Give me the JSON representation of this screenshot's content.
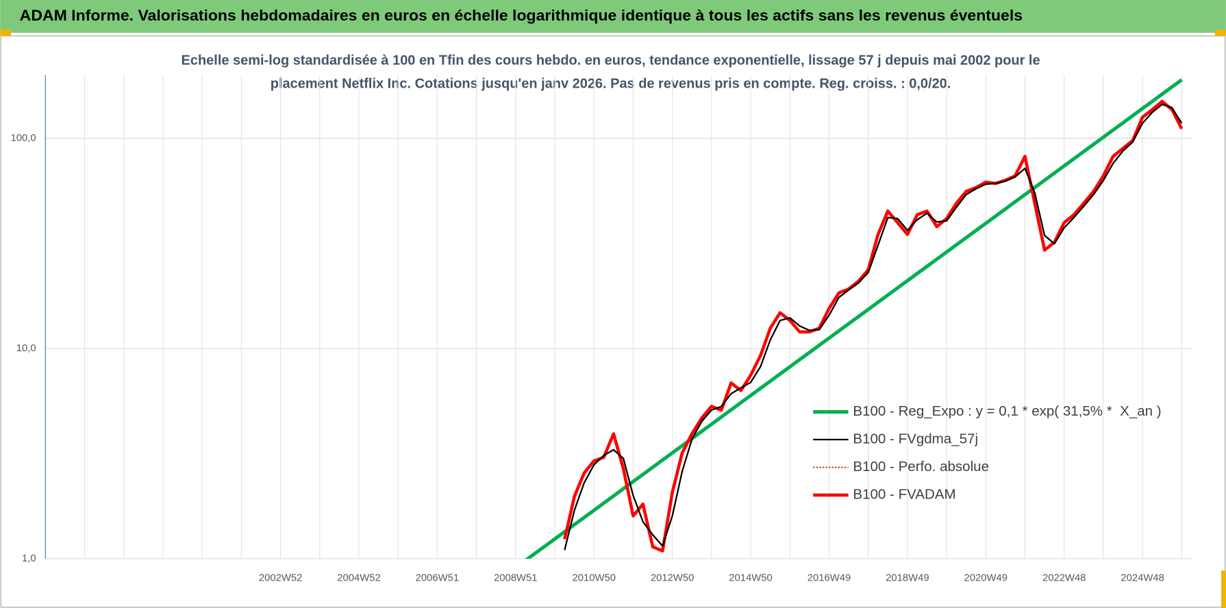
{
  "header": {
    "title": "ADAM Informe. Valorisations hebdomadaires en euros en échelle logarithmique identique à tous les actifs sans les revenus éventuels"
  },
  "chart_data": {
    "type": "line",
    "subtitle": [
      "Echelle semi-log standardisée à 100 en Tfin des cours hebdo. en euros, tendance exponentielle, lissage 57 j depuis mai 2002 pour le",
      "placement Netflix Inc. Cotations jusqu'en janv 2026. Pas de revenus pris en compte. Reg. croiss. : 0,0/20."
    ],
    "log_scale": true,
    "grid": true,
    "legend": "lower right",
    "ylim": [
      1,
      200
    ],
    "yticks": [
      {
        "value": 1,
        "label": "1,0"
      },
      {
        "value": 10,
        "label": "10,0"
      },
      {
        "value": 100,
        "label": "100,0"
      }
    ],
    "categories": [
      null,
      null,
      null,
      null,
      null,
      null,
      null,
      null,
      null,
      null,
      null,
      null,
      null,
      null,
      null,
      null,
      null,
      null,
      null,
      null,
      null,
      null,
      null,
      null,
      "2002W52",
      null,
      null,
      null,
      null,
      null,
      null,
      null,
      "2004W52",
      null,
      null,
      null,
      null,
      null,
      null,
      null,
      "2006W51",
      null,
      null,
      null,
      null,
      null,
      null,
      null,
      "2008W51",
      null,
      null,
      null,
      null,
      null,
      null,
      null,
      "2010W50",
      null,
      null,
      null,
      null,
      null,
      null,
      null,
      "2012W50",
      null,
      null,
      null,
      null,
      null,
      null,
      null,
      "2014W50",
      null,
      null,
      null,
      null,
      null,
      null,
      null,
      "2016W49",
      null,
      null,
      null,
      null,
      null,
      null,
      null,
      "2018W49",
      null,
      null,
      null,
      null,
      null,
      null,
      null,
      "2020W49",
      null,
      null,
      null,
      null,
      null,
      null,
      null,
      "2022W48",
      null,
      null,
      null,
      null,
      null,
      null,
      null,
      "2024W48",
      null,
      null,
      null,
      null
    ],
    "series": [
      {
        "name": "B100 - Reg_Expo : y = 0,1 * exp( 31,5% *  X_an )",
        "color": "#00b050",
        "width": 4.5,
        "dash": false,
        "values": [
          null,
          null,
          null,
          null,
          null,
          null,
          null,
          null,
          null,
          null,
          null,
          null,
          null,
          null,
          null,
          null,
          null,
          null,
          null,
          null,
          null,
          null,
          null,
          null,
          null,
          null,
          null,
          null,
          null,
          null,
          null,
          null,
          null,
          null,
          null,
          null,
          null,
          null,
          null,
          null,
          null,
          null,
          null,
          null,
          null,
          null,
          null,
          null,
          null,
          0.981,
          1.062,
          1.148,
          1.242,
          1.344,
          1.454,
          1.572,
          1.701,
          1.84,
          1.99,
          2.153,
          2.329,
          2.519,
          2.725,
          2.948,
          3.189,
          3.45,
          3.732,
          4.037,
          4.367,
          4.724,
          5.11,
          5.528,
          5.98,
          6.469,
          6.998,
          7.57,
          8.188,
          8.858,
          9.582,
          10.37,
          11.21,
          12.13,
          13.12,
          14.19,
          15.35,
          16.61,
          17.97,
          19.44,
          21.02,
          22.74,
          24.6,
          26.61,
          28.79,
          31.14,
          33.69,
          36.44,
          39.42,
          42.64,
          46.13,
          49.9,
          53.98,
          58.39,
          63.16,
          68.33,
          73.91,
          79.95,
          86.49,
          93.56,
          101.2,
          109.5,
          118.4,
          128.1,
          138.6,
          149.9,
          162.2,
          175.4,
          189.8
        ]
      },
      {
        "name": "B100 - FVgdma_57j",
        "color": "#000000",
        "width": 2,
        "dash": false,
        "values": [
          null,
          null,
          null,
          null,
          null,
          null,
          null,
          null,
          null,
          null,
          null,
          null,
          null,
          null,
          null,
          null,
          null,
          null,
          null,
          null,
          null,
          null,
          null,
          null,
          null,
          null,
          null,
          null,
          null,
          null,
          null,
          null,
          null,
          null,
          null,
          null,
          null,
          null,
          null,
          null,
          null,
          null,
          null,
          null,
          null,
          null,
          null,
          null,
          null,
          null,
          null,
          null,
          null,
          1.1,
          1.7,
          2.3,
          2.8,
          3.1,
          3.3,
          3,
          2,
          1.5,
          1.3,
          1.15,
          1.6,
          2.6,
          3.7,
          4.5,
          5.1,
          5.3,
          6.1,
          6.5,
          6.9,
          8.2,
          11,
          13.6,
          14,
          12.8,
          12.2,
          12.3,
          14.4,
          17.5,
          19,
          20.5,
          23,
          31,
          42,
          41.5,
          36.5,
          41,
          44,
          40,
          40.5,
          47,
          54,
          57.5,
          60.5,
          61,
          62.5,
          65.5,
          72,
          55,
          34.5,
          31.5,
          37.5,
          42,
          47.5,
          54,
          63,
          76,
          87,
          96,
          118,
          133,
          145,
          140,
          118
        ]
      },
      {
        "name": "B100 - Perfo. absolue",
        "color": "#c00000",
        "width": 1.5,
        "dash": true,
        "values": [
          null,
          null,
          null,
          null,
          null,
          null,
          null,
          null,
          null,
          null,
          null,
          null,
          null,
          null,
          null,
          null,
          null,
          null,
          null,
          null,
          null,
          null,
          null,
          null,
          null,
          null,
          null,
          null,
          null,
          null,
          null,
          null,
          null,
          null,
          null,
          null,
          null,
          null,
          null,
          null,
          null,
          null,
          null,
          null,
          null,
          null,
          null,
          null,
          null,
          null,
          null,
          null,
          null,
          1.24,
          1.98,
          2.56,
          2.92,
          3.04,
          3.93,
          2.68,
          1.6,
          1.82,
          1.14,
          1.09,
          2.07,
          3.18,
          3.93,
          4.67,
          5.31,
          5.09,
          6.86,
          6.31,
          7.47,
          9.26,
          12.5,
          14.8,
          13.6,
          12,
          12,
          12.5,
          15.5,
          18.4,
          19.2,
          20.9,
          23.7,
          34.9,
          45.1,
          39.7,
          34.9,
          43.3,
          45.1,
          38,
          41.5,
          49.1,
          55.9,
          58.3,
          61.9,
          61,
          63.2,
          66.3,
          82.1,
          49.1,
          29.4,
          32,
          39.7,
          43.3,
          49.1,
          55.9,
          66.3,
          82.1,
          89.5,
          97.6,
          126,
          137,
          150,
          137,
          111
        ]
      },
      {
        "name": "B100 - FVADAM",
        "color": "#ff0000",
        "width": 4,
        "dash": false,
        "values": [
          null,
          null,
          null,
          null,
          null,
          null,
          null,
          null,
          null,
          null,
          null,
          null,
          null,
          null,
          null,
          null,
          null,
          null,
          null,
          null,
          null,
          null,
          null,
          null,
          null,
          null,
          null,
          null,
          null,
          null,
          null,
          null,
          null,
          null,
          null,
          null,
          null,
          null,
          null,
          null,
          null,
          null,
          null,
          null,
          null,
          null,
          null,
          null,
          null,
          null,
          null,
          null,
          null,
          1.24,
          1.98,
          2.56,
          2.92,
          3.04,
          3.93,
          2.68,
          1.6,
          1.82,
          1.14,
          1.09,
          2.07,
          3.18,
          3.93,
          4.67,
          5.31,
          5.09,
          6.86,
          6.31,
          7.47,
          9.26,
          12.5,
          14.8,
          13.6,
          12,
          12,
          12.5,
          15.5,
          18.4,
          19.2,
          20.9,
          23.7,
          34.9,
          45.1,
          39.7,
          34.9,
          43.3,
          45.1,
          38,
          41.5,
          49.1,
          55.9,
          58.3,
          61.9,
          61,
          63.2,
          66.3,
          82.1,
          49.1,
          29.4,
          32,
          39.7,
          43.3,
          49.1,
          55.9,
          66.3,
          82.1,
          89.5,
          97.6,
          126,
          137,
          150,
          137,
          111
        ]
      }
    ]
  }
}
